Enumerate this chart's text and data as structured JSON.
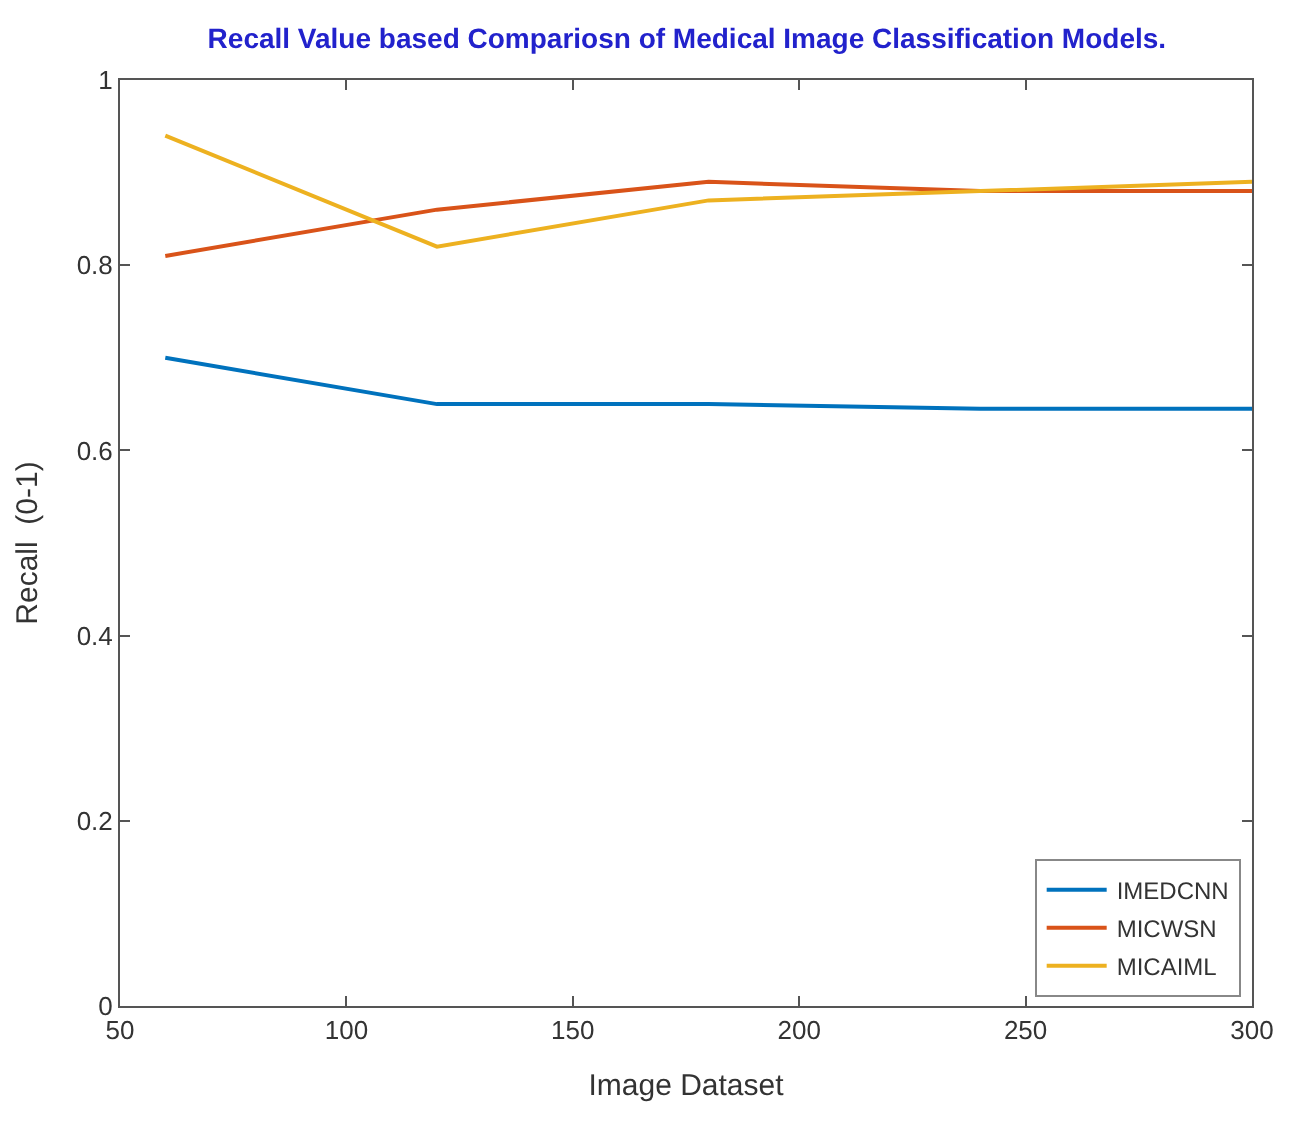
{
  "chart_data": {
    "type": "line",
    "title": "Recall Value based Compariosn of Medical Image Classification Models.",
    "xlabel": "Image Dataset",
    "ylabel": "Recall  (0-1)",
    "x": [
      60,
      120,
      180,
      240,
      300
    ],
    "series": [
      {
        "name": "IMEDCNN",
        "color": "#0072bd",
        "values": [
          0.7,
          0.65,
          0.65,
          0.645,
          0.645
        ]
      },
      {
        "name": "MICWSN",
        "color": "#d95319",
        "values": [
          0.81,
          0.86,
          0.89,
          0.88,
          0.88
        ]
      },
      {
        "name": "MICAIML",
        "color": "#edb120",
        "values": [
          0.94,
          0.82,
          0.87,
          0.88,
          0.89
        ]
      }
    ],
    "xlim": [
      50,
      300
    ],
    "ylim": [
      0,
      1
    ],
    "xticks": [
      50,
      100,
      150,
      200,
      250,
      300
    ],
    "yticks": [
      0,
      0.2,
      0.4,
      0.6,
      0.8,
      1
    ],
    "legend": "bottom right",
    "marker": "none",
    "line_style": "solid"
  }
}
